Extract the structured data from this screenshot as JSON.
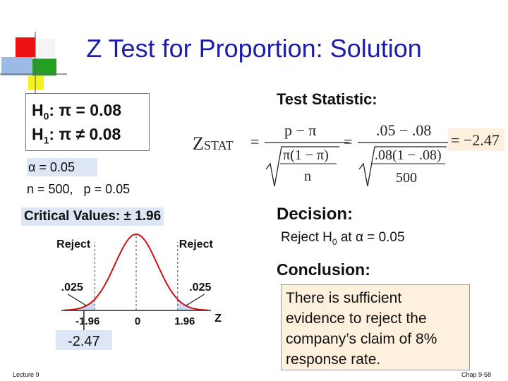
{
  "slide": {
    "title": "Z Test for Proportion: Solution",
    "hypotheses": {
      "h0_label": "H",
      "h0_sub": "0",
      "h0_rest": ": π = 0.08",
      "h1_label": "H",
      "h1_sub": "1",
      "h1_rest": ": π ≠ 0.08"
    },
    "alpha_text": "α = 0.05",
    "sample_text": "n = 500,   p = 0.05",
    "critical_values": "Critical Values: ± 1.96",
    "test_statistic": {
      "heading": "Test Statistic:",
      "z_symbol": "Z",
      "z_sub": "STAT",
      "eq1": "=",
      "numerator_symbolic": "p − π",
      "denominator_symbolic": "π(1 − π)",
      "n_symbol": "n",
      "eq2": "=",
      "numerator_values": ".05 − .08",
      "denominator_values": ".08(1 − .08)",
      "n_value": "500",
      "result": "= −2.47"
    },
    "decision": {
      "heading": "Decision:",
      "text_pre": "Reject H",
      "text_sub": "0",
      "text_post": " at α = 0.05"
    },
    "conclusion": {
      "heading": "Conclusion:",
      "text": "There is sufficient evidence to reject the company’s claim of 8% response rate."
    },
    "footer_left": "Lecture 9",
    "footer_right": "Chap 9-58"
  },
  "chart_data": {
    "type": "area",
    "distribution": "standard normal",
    "tick_labels": [
      "-1.96",
      "0",
      "1.96"
    ],
    "axis_label": "Z",
    "rejection_labels": [
      "Reject",
      "Reject"
    ],
    "tail_areas": [
      ".025",
      ".025"
    ],
    "critical_values": [
      -1.96,
      1.96
    ],
    "test_statistic": -2.47,
    "test_statistic_label": "-2.47",
    "xlim": [
      -3.4,
      3.4
    ]
  },
  "colors": {
    "title": "#1c1ca8",
    "highlight": "#dce6f4",
    "curve": "#d01010",
    "tail_fill": "#c8d8f0",
    "conclusion_bg": "#fdf0dd"
  }
}
